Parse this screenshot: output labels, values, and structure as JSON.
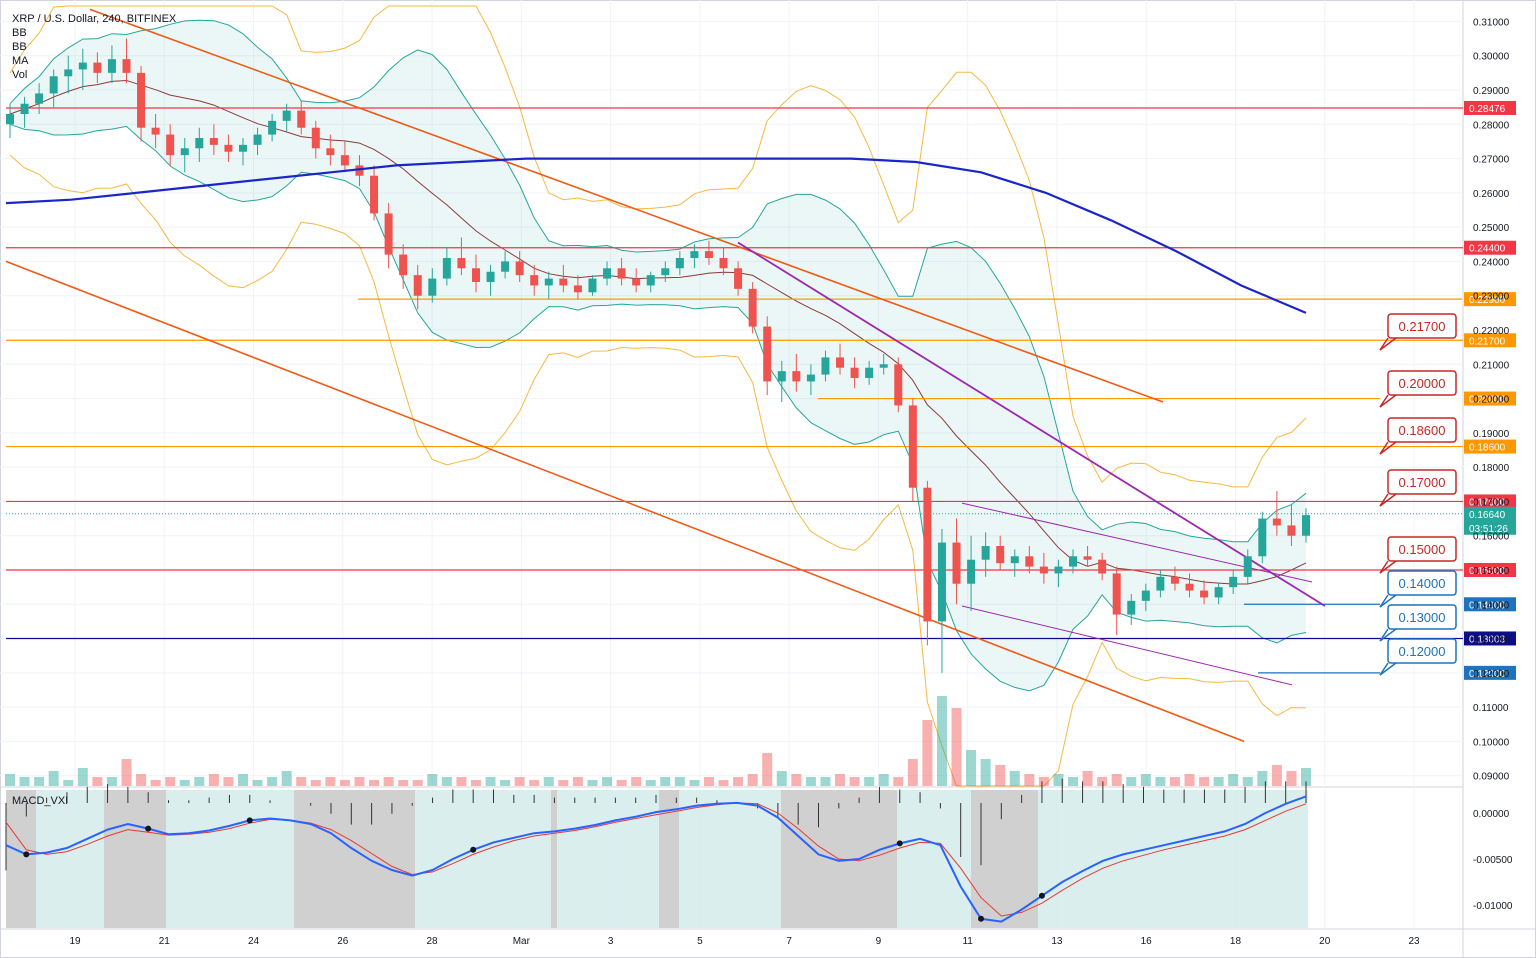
{
  "legend": {
    "title": "XRP / U.S. Dollar, 240, BITFINEX",
    "indicators": [
      "BB",
      "BB",
      "MA",
      "Vol"
    ]
  },
  "macd": {
    "label": "MACD_VXI"
  },
  "countdown": "03:51:26",
  "colors": {
    "red_level": "#f23645",
    "orange_level": "#ff9800",
    "navy_level": "#0d0d8c",
    "blue_level": "#1e73be",
    "trend_orange": "#ef5a16",
    "trend_purple": "#9c27b0",
    "ma_blue": "#1a26c8",
    "bull": "#26a69a",
    "bear": "#ef5350"
  },
  "chart_data": {
    "type": "candlestick",
    "title": "XRP / U.S. Dollar, 240, BITFINEX",
    "y_ticks": [
      "0.31000",
      "0.30000",
      "0.29000",
      "0.28000",
      "0.27000",
      "0.26000",
      "0.25000",
      "0.24000",
      "0.23000",
      "0.22000",
      "0.21000",
      "0.20000",
      "0.19000",
      "0.18000",
      "0.17000",
      "0.16000",
      "0.15000",
      "0.14000",
      "0.13000",
      "0.12000",
      "0.11000",
      "0.10000",
      "0.09000"
    ],
    "ylim": [
      0.087,
      0.3145
    ],
    "x_ticks": [
      "19",
      "21",
      "24",
      "26",
      "28",
      "Mar",
      "3",
      "5",
      "7",
      "9",
      "11",
      "13",
      "16",
      "18",
      "20",
      "23"
    ],
    "horizontal_levels": [
      {
        "value": 0.28476,
        "label": "0.28476",
        "color": "red"
      },
      {
        "value": 0.244,
        "label": "0.24400",
        "color": "red"
      },
      {
        "value": 0.229,
        "label": "0.22900",
        "color": "orange"
      },
      {
        "value": 0.217,
        "label": "0.21700",
        "color": "orange"
      },
      {
        "value": 0.2,
        "label": "0.20000",
        "color": "orange"
      },
      {
        "value": 0.186,
        "label": "0.18600",
        "color": "orange"
      },
      {
        "value": 0.17,
        "label": "0.17000",
        "color": "red"
      },
      {
        "value": 0.15,
        "label": "0.15000",
        "color": "red"
      },
      {
        "value": 0.14,
        "label": "0.14000",
        "color": "blue"
      },
      {
        "value": 0.13003,
        "label": "0.13003",
        "color": "navy"
      },
      {
        "value": 0.12,
        "label": "0.12000",
        "color": "blue"
      }
    ],
    "callouts": [
      {
        "text": "0.21700",
        "color": "red"
      },
      {
        "text": "0.20000",
        "color": "red"
      },
      {
        "text": "0.18600",
        "color": "red"
      },
      {
        "text": "0.17000",
        "color": "red"
      },
      {
        "text": "0.15000",
        "color": "red"
      },
      {
        "text": "0.14000",
        "color": "blue"
      },
      {
        "text": "0.13000",
        "color": "blue"
      },
      {
        "text": "0.12000",
        "color": "blue"
      }
    ],
    "last_price": {
      "value": 0.1664,
      "label": "0.16640"
    },
    "candles": [
      [
        0.28,
        0.286,
        0.276,
        0.283
      ],
      [
        0.283,
        0.288,
        0.279,
        0.286
      ],
      [
        0.286,
        0.292,
        0.283,
        0.289
      ],
      [
        0.289,
        0.296,
        0.285,
        0.294
      ],
      [
        0.294,
        0.3,
        0.289,
        0.296
      ],
      [
        0.296,
        0.302,
        0.29,
        0.298
      ],
      [
        0.298,
        0.301,
        0.292,
        0.295
      ],
      [
        0.295,
        0.303,
        0.292,
        0.299
      ],
      [
        0.299,
        0.305,
        0.292,
        0.295
      ],
      [
        0.295,
        0.297,
        0.275,
        0.279
      ],
      [
        0.279,
        0.283,
        0.273,
        0.277
      ],
      [
        0.277,
        0.28,
        0.268,
        0.271
      ],
      [
        0.271,
        0.276,
        0.266,
        0.273
      ],
      [
        0.273,
        0.279,
        0.269,
        0.276
      ],
      [
        0.276,
        0.28,
        0.271,
        0.274
      ],
      [
        0.274,
        0.277,
        0.269,
        0.272
      ],
      [
        0.272,
        0.276,
        0.268,
        0.274
      ],
      [
        0.274,
        0.279,
        0.271,
        0.277
      ],
      [
        0.277,
        0.283,
        0.275,
        0.281
      ],
      [
        0.281,
        0.286,
        0.278,
        0.284
      ],
      [
        0.284,
        0.287,
        0.277,
        0.279
      ],
      [
        0.279,
        0.281,
        0.27,
        0.273
      ],
      [
        0.273,
        0.277,
        0.268,
        0.271
      ],
      [
        0.271,
        0.275,
        0.266,
        0.268
      ],
      [
        0.268,
        0.271,
        0.262,
        0.265
      ],
      [
        0.265,
        0.268,
        0.252,
        0.254
      ],
      [
        0.254,
        0.257,
        0.238,
        0.242
      ],
      [
        0.242,
        0.245,
        0.232,
        0.236
      ],
      [
        0.236,
        0.239,
        0.226,
        0.23
      ],
      [
        0.23,
        0.238,
        0.228,
        0.235
      ],
      [
        0.235,
        0.244,
        0.233,
        0.241
      ],
      [
        0.241,
        0.247,
        0.236,
        0.238
      ],
      [
        0.238,
        0.242,
        0.231,
        0.234
      ],
      [
        0.234,
        0.239,
        0.23,
        0.237
      ],
      [
        0.237,
        0.243,
        0.235,
        0.24
      ],
      [
        0.24,
        0.243,
        0.234,
        0.236
      ],
      [
        0.236,
        0.239,
        0.23,
        0.233
      ],
      [
        0.233,
        0.237,
        0.229,
        0.235
      ],
      [
        0.235,
        0.239,
        0.231,
        0.233
      ],
      [
        0.233,
        0.236,
        0.229,
        0.231
      ],
      [
        0.231,
        0.236,
        0.23,
        0.235
      ],
      [
        0.235,
        0.24,
        0.233,
        0.238
      ],
      [
        0.238,
        0.241,
        0.233,
        0.235
      ],
      [
        0.235,
        0.238,
        0.231,
        0.233
      ],
      [
        0.233,
        0.237,
        0.231,
        0.236
      ],
      [
        0.236,
        0.24,
        0.234,
        0.238
      ],
      [
        0.238,
        0.243,
        0.236,
        0.241
      ],
      [
        0.241,
        0.245,
        0.238,
        0.243
      ],
      [
        0.243,
        0.246,
        0.239,
        0.241
      ],
      [
        0.241,
        0.244,
        0.236,
        0.238
      ],
      [
        0.238,
        0.24,
        0.23,
        0.232
      ],
      [
        0.232,
        0.234,
        0.219,
        0.221
      ],
      [
        0.221,
        0.224,
        0.201,
        0.205
      ],
      [
        0.205,
        0.211,
        0.199,
        0.208
      ],
      [
        0.208,
        0.213,
        0.202,
        0.205
      ],
      [
        0.205,
        0.21,
        0.201,
        0.207
      ],
      [
        0.207,
        0.214,
        0.205,
        0.212
      ],
      [
        0.212,
        0.216,
        0.207,
        0.209
      ],
      [
        0.209,
        0.212,
        0.203,
        0.206
      ],
      [
        0.206,
        0.211,
        0.204,
        0.209
      ],
      [
        0.209,
        0.213,
        0.207,
        0.21
      ],
      [
        0.21,
        0.212,
        0.196,
        0.198
      ],
      [
        0.198,
        0.2,
        0.17,
        0.174
      ],
      [
        0.174,
        0.176,
        0.128,
        0.135
      ],
      [
        0.135,
        0.162,
        0.12,
        0.158
      ],
      [
        0.158,
        0.165,
        0.14,
        0.146
      ],
      [
        0.146,
        0.16,
        0.138,
        0.153
      ],
      [
        0.153,
        0.161,
        0.148,
        0.157
      ],
      [
        0.157,
        0.16,
        0.15,
        0.152
      ],
      [
        0.152,
        0.156,
        0.148,
        0.154
      ],
      [
        0.154,
        0.157,
        0.149,
        0.151
      ],
      [
        0.151,
        0.155,
        0.146,
        0.149
      ],
      [
        0.149,
        0.153,
        0.145,
        0.151
      ],
      [
        0.151,
        0.156,
        0.149,
        0.154
      ],
      [
        0.154,
        0.157,
        0.151,
        0.153
      ],
      [
        0.153,
        0.155,
        0.147,
        0.149
      ],
      [
        0.149,
        0.151,
        0.131,
        0.137
      ],
      [
        0.137,
        0.143,
        0.134,
        0.141
      ],
      [
        0.141,
        0.146,
        0.138,
        0.144
      ],
      [
        0.144,
        0.15,
        0.142,
        0.148
      ],
      [
        0.148,
        0.151,
        0.144,
        0.146
      ],
      [
        0.146,
        0.149,
        0.142,
        0.144
      ],
      [
        0.144,
        0.147,
        0.14,
        0.142
      ],
      [
        0.142,
        0.146,
        0.14,
        0.145
      ],
      [
        0.145,
        0.15,
        0.143,
        0.148
      ],
      [
        0.148,
        0.156,
        0.146,
        0.154
      ],
      [
        0.154,
        0.167,
        0.152,
        0.165
      ],
      [
        0.165,
        0.173,
        0.16,
        0.163
      ],
      [
        0.163,
        0.169,
        0.157,
        0.16
      ],
      [
        0.16,
        0.168,
        0.158,
        0.166
      ]
    ],
    "moving_average_200": [
      0.257,
      0.258,
      0.26,
      0.262,
      0.264,
      0.266,
      0.268,
      0.269,
      0.27,
      0.27,
      0.27,
      0.27,
      0.27,
      0.27,
      0.269,
      0.266,
      0.26,
      0.252,
      0.243,
      0.233,
      0.225
    ],
    "volume": [
      4,
      3,
      3,
      5,
      2,
      6,
      3,
      3,
      9,
      4,
      2,
      3,
      2,
      3,
      4,
      3,
      4,
      2,
      3,
      5,
      3,
      2,
      3,
      2,
      3,
      2,
      3,
      2,
      2,
      4,
      3,
      3,
      2,
      3,
      2,
      3,
      2,
      3,
      2,
      3,
      2,
      3,
      2,
      3,
      2,
      3,
      3,
      2,
      3,
      2,
      3,
      4,
      11,
      5,
      4,
      3,
      3,
      4,
      3,
      3,
      4,
      3,
      9,
      22,
      30,
      26,
      12,
      9,
      7,
      5,
      4,
      3,
      4,
      3,
      5,
      3,
      4,
      3,
      4,
      3,
      3,
      4,
      3,
      3,
      4,
      3,
      5,
      7,
      5,
      6
    ],
    "macd": {
      "fast": [
        -0.0035,
        -0.0045,
        -0.0043,
        -0.0038,
        -0.0028,
        -0.0018,
        -0.0012,
        -0.0017,
        -0.0023,
        -0.0022,
        -0.0019,
        -0.0014,
        -0.0008,
        -0.0006,
        -0.0008,
        -0.0012,
        -0.0022,
        -0.0038,
        -0.0052,
        -0.0062,
        -0.0068,
        -0.0062,
        -0.005,
        -0.004,
        -0.0032,
        -0.0027,
        -0.0022,
        -0.002,
        -0.0017,
        -0.0013,
        -0.0008,
        -0.0004,
        0.0001,
        0.0004,
        0.0008,
        0.001,
        0.0011,
        0.0008,
        -0.0005,
        -0.0025,
        -0.0045,
        -0.0052,
        -0.005,
        -0.004,
        -0.0033,
        -0.0028,
        -0.0035,
        -0.008,
        -0.0115,
        -0.0118,
        -0.0105,
        -0.009,
        -0.0075,
        -0.0063,
        -0.0052,
        -0.0045,
        -0.004,
        -0.0035,
        -0.003,
        -0.0025,
        -0.002,
        -0.0012,
        0.0,
        0.001,
        0.0018
      ],
      "signal": [
        -0.001,
        -0.004,
        -0.0045,
        -0.0042,
        -0.0034,
        -0.0025,
        -0.0018,
        -0.0021,
        -0.0024,
        -0.0023,
        -0.0021,
        -0.0017,
        -0.0011,
        -0.0007,
        -0.0008,
        -0.0011,
        -0.0018,
        -0.003,
        -0.0044,
        -0.0058,
        -0.0067,
        -0.0064,
        -0.0055,
        -0.0045,
        -0.0037,
        -0.003,
        -0.0025,
        -0.0022,
        -0.0019,
        -0.0015,
        -0.001,
        -0.0006,
        -0.0002,
        0.0002,
        0.0006,
        0.0009,
        0.0011,
        0.001,
        0.0,
        -0.0017,
        -0.0036,
        -0.005,
        -0.0052,
        -0.0046,
        -0.0038,
        -0.0032,
        -0.0033,
        -0.006,
        -0.0092,
        -0.0112,
        -0.0108,
        -0.0098,
        -0.0084,
        -0.0071,
        -0.006,
        -0.0052,
        -0.0046,
        -0.004,
        -0.0035,
        -0.003,
        -0.0025,
        -0.0018,
        -0.0008,
        0.0002,
        0.001
      ],
      "y_ticks": [
        "0.00000",
        "-0.00500",
        "-0.01000"
      ],
      "ylim": [
        -0.0125,
        0.0025
      ]
    }
  }
}
